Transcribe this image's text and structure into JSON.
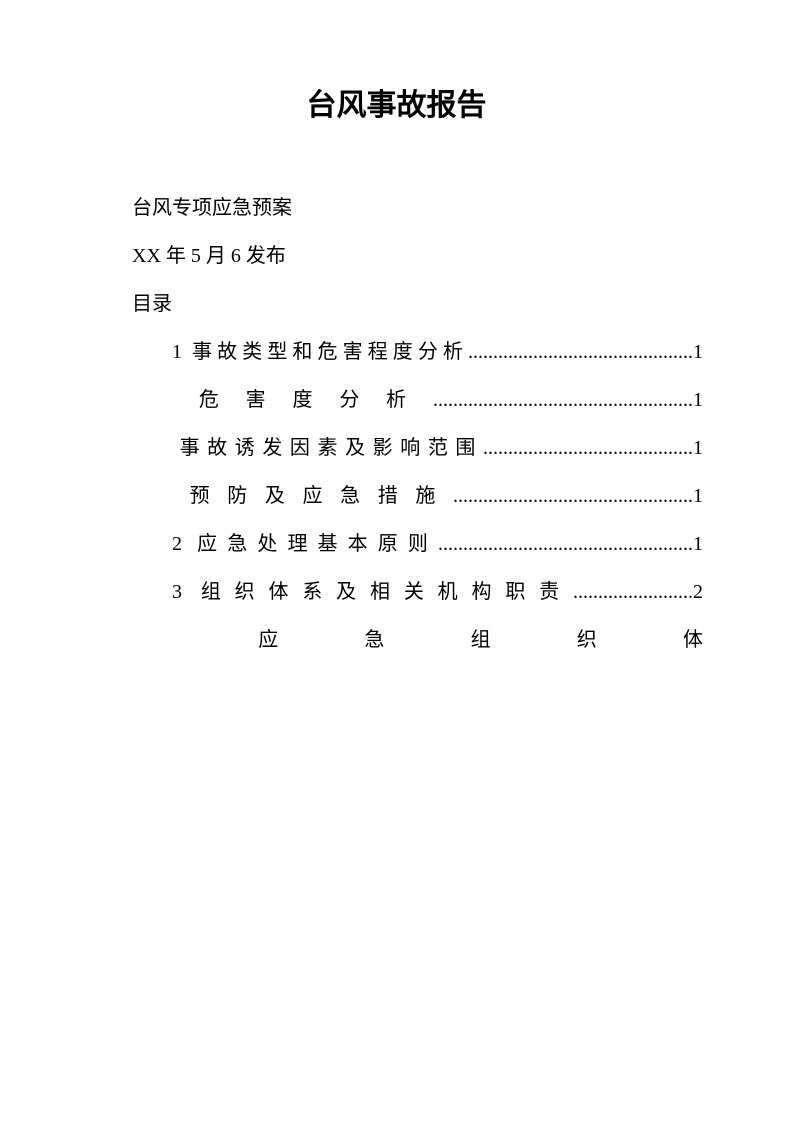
{
  "title": "台风事故报告",
  "intro": {
    "line1": "台风专项应急预案",
    "line2": "XX 年 5 月 6 发布",
    "line3": "目录"
  },
  "toc": {
    "entry1": "1 事故类型和危害程度分析.............................................1",
    "entry2": "危害度分析....................................................1",
    "entry3": "事故诱发因素及影响范围..........................................1",
    "entry4": "预防及应急措施................................................1",
    "entry5": "2 应急处理基本原则...................................................1",
    "entry6": "3 组织体系及相关机构职责........................2",
    "entry7": "应急组织体"
  },
  "colors": {
    "background": "#ffffff",
    "text": "#000000"
  },
  "fonts": {
    "title_size": 30,
    "body_size": 20,
    "title_family": "SimHei",
    "body_family": "SimSun"
  }
}
